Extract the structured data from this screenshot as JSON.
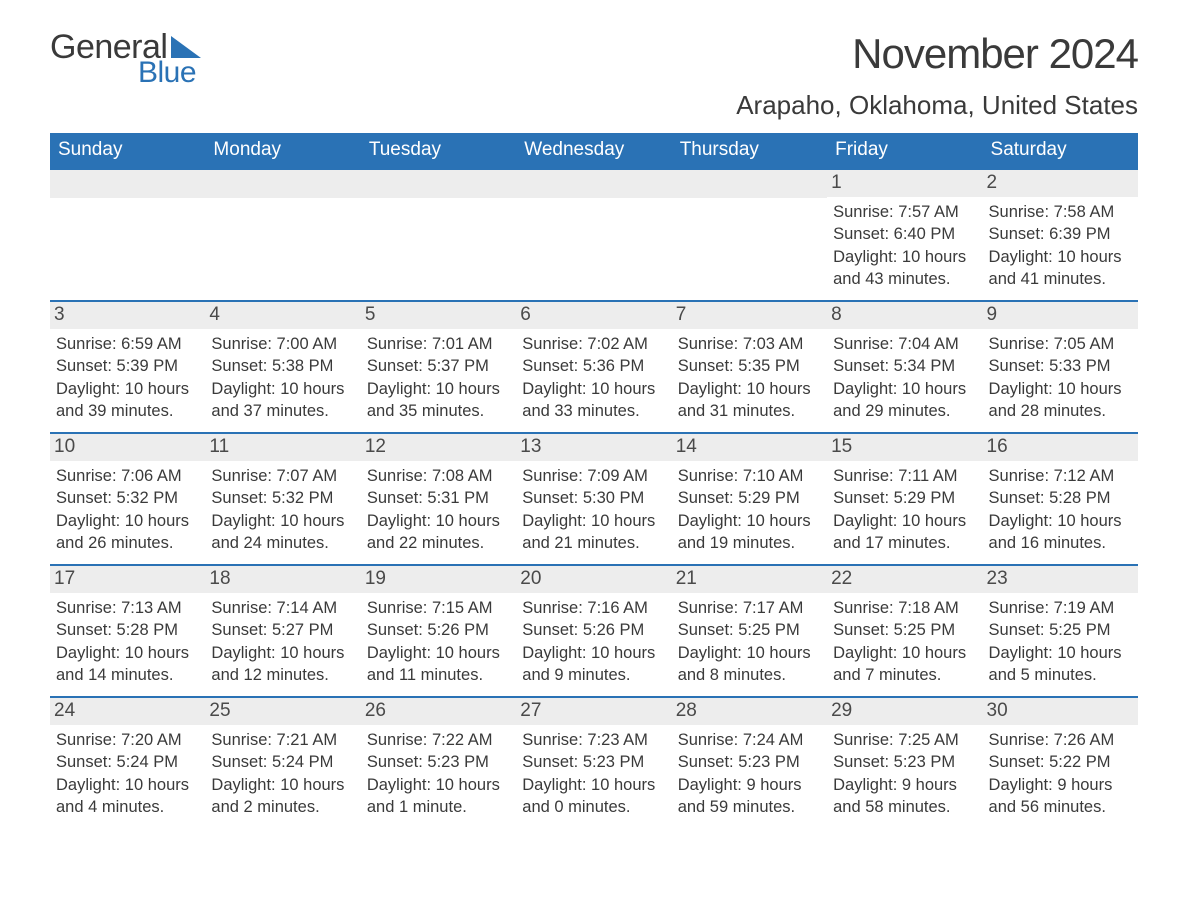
{
  "logo": {
    "word1": "General",
    "word2": "Blue",
    "text_color": "#3a3a3a",
    "accent_color": "#2a72b5"
  },
  "title": "November 2024",
  "location": "Arapaho, Oklahoma, United States",
  "colors": {
    "header_bg": "#2a72b5",
    "header_text": "#ffffff",
    "daynum_bg": "#ededed",
    "row_border": "#2a72b5",
    "body_text": "#3a3a3a",
    "page_bg": "#ffffff"
  },
  "fonts": {
    "title_size": 42,
    "location_size": 26,
    "dayheader_size": 19,
    "daynum_size": 19,
    "body_size": 16.5
  },
  "day_headers": [
    "Sunday",
    "Monday",
    "Tuesday",
    "Wednesday",
    "Thursday",
    "Friday",
    "Saturday"
  ],
  "weeks": [
    [
      null,
      null,
      null,
      null,
      null,
      {
        "n": "1",
        "sr": "7:57 AM",
        "ss": "6:40 PM",
        "dl": "10 hours and 43 minutes."
      },
      {
        "n": "2",
        "sr": "7:58 AM",
        "ss": "6:39 PM",
        "dl": "10 hours and 41 minutes."
      }
    ],
    [
      {
        "n": "3",
        "sr": "6:59 AM",
        "ss": "5:39 PM",
        "dl": "10 hours and 39 minutes."
      },
      {
        "n": "4",
        "sr": "7:00 AM",
        "ss": "5:38 PM",
        "dl": "10 hours and 37 minutes."
      },
      {
        "n": "5",
        "sr": "7:01 AM",
        "ss": "5:37 PM",
        "dl": "10 hours and 35 minutes."
      },
      {
        "n": "6",
        "sr": "7:02 AM",
        "ss": "5:36 PM",
        "dl": "10 hours and 33 minutes."
      },
      {
        "n": "7",
        "sr": "7:03 AM",
        "ss": "5:35 PM",
        "dl": "10 hours and 31 minutes."
      },
      {
        "n": "8",
        "sr": "7:04 AM",
        "ss": "5:34 PM",
        "dl": "10 hours and 29 minutes."
      },
      {
        "n": "9",
        "sr": "7:05 AM",
        "ss": "5:33 PM",
        "dl": "10 hours and 28 minutes."
      }
    ],
    [
      {
        "n": "10",
        "sr": "7:06 AM",
        "ss": "5:32 PM",
        "dl": "10 hours and 26 minutes."
      },
      {
        "n": "11",
        "sr": "7:07 AM",
        "ss": "5:32 PM",
        "dl": "10 hours and 24 minutes."
      },
      {
        "n": "12",
        "sr": "7:08 AM",
        "ss": "5:31 PM",
        "dl": "10 hours and 22 minutes."
      },
      {
        "n": "13",
        "sr": "7:09 AM",
        "ss": "5:30 PM",
        "dl": "10 hours and 21 minutes."
      },
      {
        "n": "14",
        "sr": "7:10 AM",
        "ss": "5:29 PM",
        "dl": "10 hours and 19 minutes."
      },
      {
        "n": "15",
        "sr": "7:11 AM",
        "ss": "5:29 PM",
        "dl": "10 hours and 17 minutes."
      },
      {
        "n": "16",
        "sr": "7:12 AM",
        "ss": "5:28 PM",
        "dl": "10 hours and 16 minutes."
      }
    ],
    [
      {
        "n": "17",
        "sr": "7:13 AM",
        "ss": "5:28 PM",
        "dl": "10 hours and 14 minutes."
      },
      {
        "n": "18",
        "sr": "7:14 AM",
        "ss": "5:27 PM",
        "dl": "10 hours and 12 minutes."
      },
      {
        "n": "19",
        "sr": "7:15 AM",
        "ss": "5:26 PM",
        "dl": "10 hours and 11 minutes."
      },
      {
        "n": "20",
        "sr": "7:16 AM",
        "ss": "5:26 PM",
        "dl": "10 hours and 9 minutes."
      },
      {
        "n": "21",
        "sr": "7:17 AM",
        "ss": "5:25 PM",
        "dl": "10 hours and 8 minutes."
      },
      {
        "n": "22",
        "sr": "7:18 AM",
        "ss": "5:25 PM",
        "dl": "10 hours and 7 minutes."
      },
      {
        "n": "23",
        "sr": "7:19 AM",
        "ss": "5:25 PM",
        "dl": "10 hours and 5 minutes."
      }
    ],
    [
      {
        "n": "24",
        "sr": "7:20 AM",
        "ss": "5:24 PM",
        "dl": "10 hours and 4 minutes."
      },
      {
        "n": "25",
        "sr": "7:21 AM",
        "ss": "5:24 PM",
        "dl": "10 hours and 2 minutes."
      },
      {
        "n": "26",
        "sr": "7:22 AM",
        "ss": "5:23 PM",
        "dl": "10 hours and 1 minute."
      },
      {
        "n": "27",
        "sr": "7:23 AM",
        "ss": "5:23 PM",
        "dl": "10 hours and 0 minutes."
      },
      {
        "n": "28",
        "sr": "7:24 AM",
        "ss": "5:23 PM",
        "dl": "9 hours and 59 minutes."
      },
      {
        "n": "29",
        "sr": "7:25 AM",
        "ss": "5:23 PM",
        "dl": "9 hours and 58 minutes."
      },
      {
        "n": "30",
        "sr": "7:26 AM",
        "ss": "5:22 PM",
        "dl": "9 hours and 56 minutes."
      }
    ]
  ],
  "labels": {
    "sunrise": "Sunrise: ",
    "sunset": "Sunset: ",
    "daylight": "Daylight: "
  }
}
